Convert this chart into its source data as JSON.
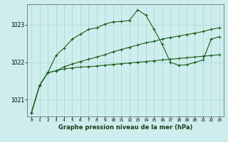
{
  "background_color": "#ceeeed",
  "grid_color": "#add8d8",
  "line_color": "#1a5c1a",
  "title": "Graphe pression niveau de la mer (hPa)",
  "yticks": [
    1021,
    1022,
    1023
  ],
  "ylim": [
    1020.55,
    1023.55
  ],
  "xlim": [
    -0.5,
    23.5
  ],
  "xticks": [
    0,
    1,
    2,
    3,
    4,
    5,
    6,
    7,
    8,
    9,
    10,
    11,
    12,
    13,
    14,
    15,
    16,
    17,
    18,
    19,
    20,
    21,
    22,
    23
  ],
  "hours": [
    0,
    1,
    2,
    3,
    4,
    5,
    6,
    7,
    8,
    9,
    10,
    11,
    12,
    13,
    14,
    15,
    16,
    17,
    18,
    19,
    20,
    21,
    22,
    23
  ],
  "s1": [
    1020.65,
    1021.38,
    1021.72,
    1021.77,
    1021.82,
    1021.85,
    1021.87,
    1021.88,
    1021.9,
    1021.92,
    1021.94,
    1021.96,
    1021.98,
    1022.0,
    1022.02,
    1022.04,
    1022.06,
    1022.08,
    1022.1,
    1022.12,
    1022.14,
    1022.16,
    1022.18,
    1022.2
  ],
  "s2": [
    1020.65,
    1021.38,
    1021.72,
    1021.77,
    1021.88,
    1021.95,
    1022.02,
    1022.08,
    1022.14,
    1022.2,
    1022.28,
    1022.34,
    1022.4,
    1022.46,
    1022.52,
    1022.56,
    1022.62,
    1022.66,
    1022.7,
    1022.74,
    1022.78,
    1022.82,
    1022.88,
    1022.92
  ],
  "s3": [
    1020.65,
    1021.38,
    1021.72,
    1022.18,
    1022.38,
    1022.62,
    1022.75,
    1022.88,
    1022.92,
    1023.02,
    1023.08,
    1023.09,
    1023.12,
    1023.4,
    1023.26,
    1022.88,
    1022.48,
    1022.0,
    1021.92,
    1021.93,
    1022.0,
    1022.06,
    1022.62,
    1022.68
  ]
}
